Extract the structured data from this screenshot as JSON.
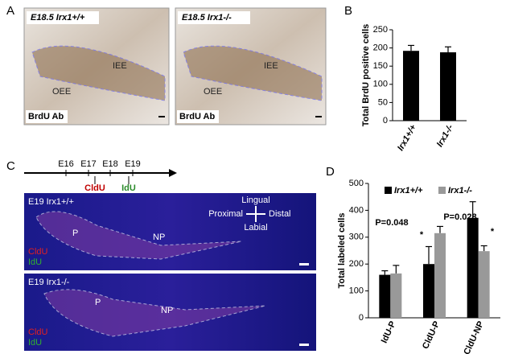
{
  "panel_labels": [
    "A",
    "B",
    "C",
    "D"
  ],
  "panel_a": {
    "images": [
      {
        "title": "E18.5 Irx1+/+",
        "labels": [
          "IEE",
          "OEE"
        ],
        "stain": "BrdU Ab"
      },
      {
        "title": "E18.5 Irx1-/-",
        "labels": [
          "IEE",
          "OEE"
        ],
        "stain": "BrdU Ab"
      }
    ]
  },
  "panel_c": {
    "timeline": [
      "E16",
      "E17",
      "E18",
      "E19"
    ],
    "pulses": [
      "CldU",
      "IdU"
    ],
    "orientation": {
      "top": "Lingual",
      "left": "Proximal",
      "right": "Distal",
      "bottom": "Labial"
    },
    "images": [
      {
        "title": "E19 Irx1+/+",
        "regions": [
          "P",
          "NP"
        ],
        "channels": [
          "CldU",
          "IdU"
        ]
      },
      {
        "title": "E19 Irx1-/-",
        "regions": [
          "P",
          "NP"
        ],
        "channels": [
          "CldU",
          "IdU"
        ]
      }
    ]
  },
  "chart_data": [
    {
      "type": "bar",
      "ylabel": "Total BrdU positive cells",
      "categories": [
        "Irx1+/+",
        "Irx1-/-"
      ],
      "values": [
        192,
        188
      ],
      "errors": [
        15,
        15
      ],
      "color": "#000000",
      "ylim": [
        0,
        250
      ],
      "yticks": [
        0,
        50,
        100,
        150,
        200,
        250
      ]
    },
    {
      "type": "grouped_bar",
      "ylabel": "Total labeled cells",
      "categories": [
        "IdU-P",
        "CldU-P",
        "CldU-NP"
      ],
      "series": [
        {
          "name": "Irx1+/+",
          "color": "#000000",
          "values": [
            160,
            200,
            372
          ],
          "errors": [
            15,
            65,
            60
          ]
        },
        {
          "name": "Irx1-/-",
          "color": "#999999",
          "values": [
            165,
            315,
            248
          ],
          "errors": [
            30,
            25,
            20
          ]
        }
      ],
      "ylim": [
        0,
        500
      ],
      "yticks": [
        0,
        100,
        200,
        300,
        400,
        500
      ],
      "annotations": [
        "P=0.048",
        "*",
        "P=0.028",
        "*"
      ]
    }
  ]
}
